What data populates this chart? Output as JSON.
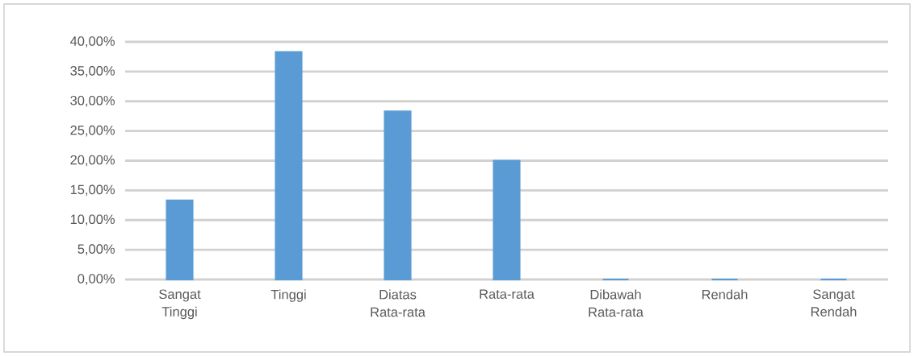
{
  "chart_data": {
    "type": "bar",
    "categories": [
      "Sangat Tinggi",
      "Tinggi",
      "Diatas Rata-rata",
      "Rata-rata",
      "Dibawah Rata-rata",
      "Rendah",
      "Sangat Rendah"
    ],
    "values": [
      13.3,
      38.3,
      28.3,
      20.0,
      0,
      0,
      0
    ],
    "color": "#5b9bd5",
    "ylim": [
      0,
      40
    ],
    "yticks": [
      {
        "value": 0,
        "label": "0,00%"
      },
      {
        "value": 5,
        "label": "5,00%"
      },
      {
        "value": 10,
        "label": "10,00%"
      },
      {
        "value": 15,
        "label": "15,00%"
      },
      {
        "value": 20,
        "label": "20,00%"
      },
      {
        "value": 25,
        "label": "25,00%"
      },
      {
        "value": 30,
        "label": "30,00%"
      },
      {
        "value": 35,
        "label": "35,00%"
      },
      {
        "value": 40,
        "label": "40,00%"
      }
    ],
    "grid": "y"
  }
}
